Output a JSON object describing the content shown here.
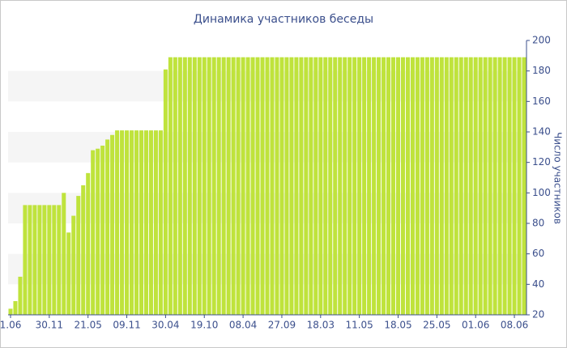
{
  "chart_data": {
    "type": "bar",
    "title": "Динамика участников беседы",
    "y_label": "Число участников",
    "color": "#bfe33c",
    "categories": [
      "1.06",
      null,
      null,
      null,
      null,
      null,
      null,
      null,
      "30.11",
      null,
      null,
      null,
      null,
      null,
      null,
      null,
      "21.05",
      null,
      null,
      null,
      null,
      null,
      null,
      null,
      "09.11",
      null,
      null,
      null,
      null,
      null,
      null,
      null,
      "30.04",
      null,
      null,
      null,
      null,
      null,
      null,
      null,
      "19.10",
      null,
      null,
      null,
      null,
      null,
      null,
      null,
      "08.04",
      null,
      null,
      null,
      null,
      null,
      null,
      null,
      "27.09",
      null,
      null,
      null,
      null,
      null,
      null,
      null,
      "18.03",
      null,
      null,
      null,
      null,
      null,
      null,
      null,
      "11.05",
      null,
      null,
      null,
      null,
      null,
      null,
      null,
      "18.05",
      null,
      null,
      null,
      null,
      null,
      null,
      null,
      "25.05",
      null,
      null,
      null,
      null,
      null,
      null,
      null,
      "01.06",
      null,
      null,
      null,
      null,
      null,
      null,
      null,
      "08.06",
      null,
      null
    ],
    "values": [
      24,
      29,
      45,
      92,
      92,
      92,
      92,
      92,
      92,
      92,
      92,
      100,
      74,
      85,
      98,
      105,
      113,
      128,
      129,
      131,
      135,
      138,
      141,
      141,
      141,
      141,
      141,
      141,
      141,
      141,
      141,
      141,
      181,
      189,
      189,
      189,
      189,
      189,
      189,
      189,
      189,
      189,
      189,
      189,
      189,
      189,
      189,
      189,
      189,
      189,
      189,
      189,
      189,
      189,
      189,
      189,
      189,
      189,
      189,
      189,
      189,
      189,
      189,
      189,
      189,
      189,
      189,
      189,
      189,
      189,
      189,
      189,
      189,
      189,
      189,
      189,
      189,
      189,
      189,
      189,
      189,
      189,
      189,
      189,
      189,
      189,
      189,
      189,
      189,
      189,
      189,
      189,
      189,
      189,
      189,
      189,
      189,
      189,
      189,
      189,
      189,
      189,
      189,
      189,
      189,
      189,
      189
    ],
    "ylim": [
      20,
      200
    ],
    "yticks": [
      20,
      40,
      60,
      80,
      100,
      120,
      140,
      160,
      180,
      200
    ],
    "y_axis_side": "right",
    "bands": true
  }
}
